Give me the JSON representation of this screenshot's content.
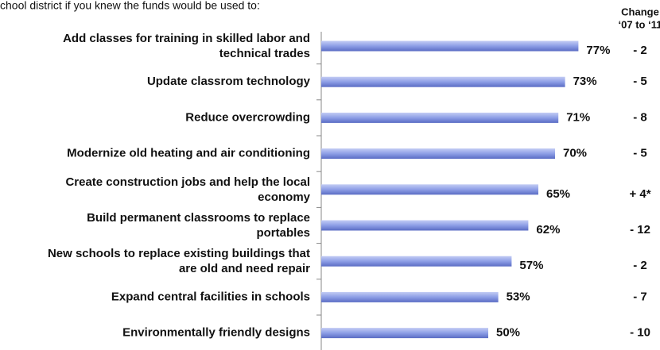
{
  "chart_data": {
    "type": "bar",
    "orientation": "horizontal",
    "subtitle": "chool district if you knew the funds would be used to:",
    "change_header": [
      "Change",
      "‘07 to ‘11"
    ],
    "categories": [
      [
        "Add classes for training in skilled labor and",
        "technical trades"
      ],
      [
        "Update classrom technology"
      ],
      [
        "Reduce overcrowding"
      ],
      [
        "Modernize old heating and air conditioning"
      ],
      [
        "Create construction jobs and help the local",
        "economy"
      ],
      [
        "Build permanent classrooms to replace",
        "portables"
      ],
      [
        "New schools to replace existing buildings that",
        "are old and need repair"
      ],
      [
        "Expand central facilities in schools"
      ],
      [
        "Environmentally friendly designs"
      ]
    ],
    "values": [
      77,
      73,
      71,
      70,
      65,
      62,
      57,
      53,
      50
    ],
    "value_labels": [
      "77%",
      "73%",
      "71%",
      "70%",
      "65%",
      "62%",
      "57%",
      "53%",
      "50%"
    ],
    "changes": [
      "- 2",
      "- 5",
      "- 8",
      "- 5",
      "+ 4*",
      "- 12",
      "- 2",
      "- 7",
      "- 10"
    ],
    "color": "#8d9ee6"
  }
}
